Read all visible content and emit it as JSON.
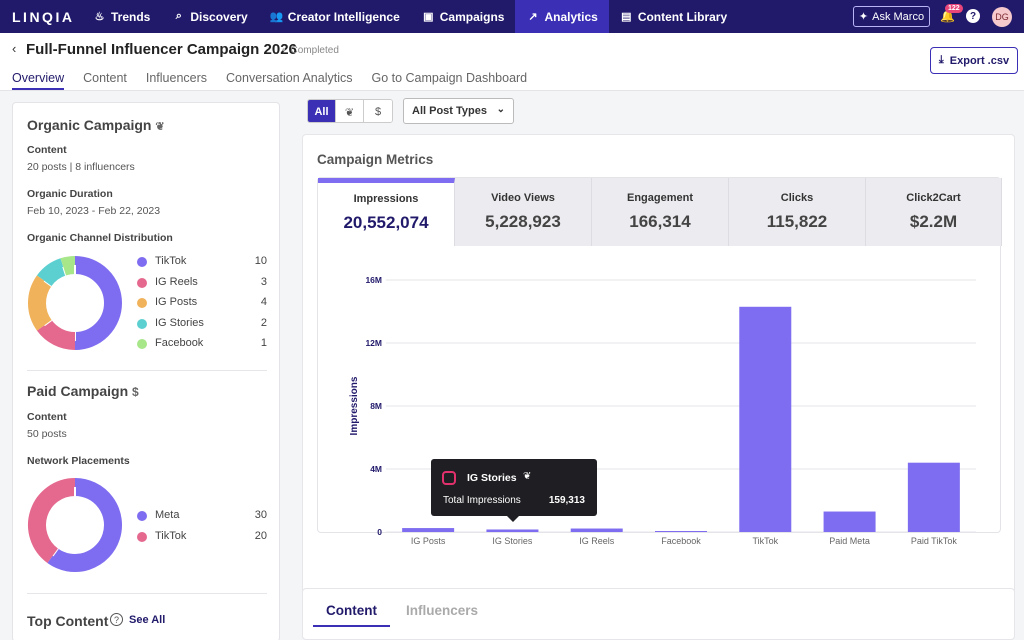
{
  "nav": {
    "logo": "LINQIA",
    "items": [
      {
        "label": "Trends",
        "icon": "flame-icon"
      },
      {
        "label": "Discovery",
        "icon": "search-icon"
      },
      {
        "label": "Creator Intelligence",
        "icon": "people-icon"
      },
      {
        "label": "Campaigns",
        "icon": "briefcase-icon"
      },
      {
        "label": "Analytics",
        "icon": "trend-up-icon"
      },
      {
        "label": "Content Library",
        "icon": "gallery-icon"
      }
    ],
    "ask": "Ask Marco",
    "notification_count": "122",
    "avatar": "DG"
  },
  "header": {
    "title": "Full-Funnel Influencer Campaign 2026",
    "status": "Completed",
    "export_label": "Export .csv",
    "tabs": [
      "Overview",
      "Content",
      "Influencers",
      "Conversation Analytics",
      "Go to Campaign Dashboard"
    ]
  },
  "organic": {
    "title": "Organic Campaign",
    "content_label": "Content",
    "content_value": "20 posts | 8 influencers",
    "duration_label": "Organic Duration",
    "duration_value": "Feb 10, 2023 - Feb 22, 2023",
    "dist_label": "Organic Channel Distribution",
    "channels": [
      {
        "name": "TikTok",
        "count": 10,
        "color": "#7e6df0"
      },
      {
        "name": "IG Reels",
        "count": 3,
        "color": "#e5688e"
      },
      {
        "name": "IG Posts",
        "count": 4,
        "color": "#f0b25a"
      },
      {
        "name": "IG Stories",
        "count": 2,
        "color": "#5ccfd0"
      },
      {
        "name": "Facebook",
        "count": 1,
        "color": "#a8e68a"
      }
    ]
  },
  "paid": {
    "title": "Paid Campaign",
    "content_label": "Content",
    "content_value": "50 posts",
    "placements_label": "Network Placements",
    "placements": [
      {
        "name": "Meta",
        "count": 30,
        "color": "#7e6df0"
      },
      {
        "name": "TikTok",
        "count": 20,
        "color": "#e5688e"
      }
    ]
  },
  "top_content": {
    "title": "Top Content",
    "see_all": "See All"
  },
  "filters": {
    "all": "All",
    "dollar": "$",
    "post_types": "All Post Types"
  },
  "metrics": {
    "title": "Campaign Metrics",
    "tabs": [
      {
        "label": "Impressions",
        "value": "20,552,074"
      },
      {
        "label": "Video Views",
        "value": "5,228,923"
      },
      {
        "label": "Engagement",
        "value": "166,314"
      },
      {
        "label": "Clicks",
        "value": "115,822"
      },
      {
        "label": "Click2Cart",
        "value": "$2.2M"
      }
    ]
  },
  "chart_data": {
    "type": "bar",
    "ylabel": "Impressions",
    "ylim": [
      0,
      16000000
    ],
    "yticks": [
      0,
      4000000,
      8000000,
      12000000,
      16000000
    ],
    "ytick_labels": [
      "0",
      "4M",
      "8M",
      "12M",
      "16M"
    ],
    "categories": [
      "IG Posts",
      "IG Stories",
      "IG Reels",
      "Facebook",
      "TikTok",
      "Paid Meta",
      "Paid TikTok"
    ],
    "values": [
      250000,
      159313,
      220000,
      20000,
      14300000,
      1300000,
      4400000
    ],
    "color": "#7e6df0",
    "grid": true
  },
  "tooltip": {
    "name": "IG Stories",
    "label": "Total Impressions",
    "value": "159,313"
  },
  "bottom_tabs": [
    "Content",
    "Influencers"
  ]
}
